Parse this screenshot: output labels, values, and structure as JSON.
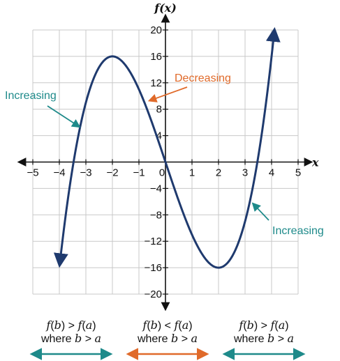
{
  "chart_data": {
    "type": "line",
    "xlabel": "x",
    "ylabel": "f(x)",
    "xlim": [
      -5,
      5
    ],
    "ylim": [
      -20,
      20
    ],
    "x_ticks": [
      -5,
      -4,
      -3,
      -2,
      -1,
      0,
      1,
      2,
      3,
      4,
      5
    ],
    "y_ticks": [
      -20,
      -16,
      -12,
      -8,
      -4,
      4,
      8,
      12,
      16,
      20
    ],
    "grid": true,
    "series": [
      {
        "function": "x^3 - 12x",
        "color": "#1f3a6e",
        "x": [
          -4,
          -3.5,
          -3,
          -2.5,
          -2,
          -1.5,
          -1,
          -0.5,
          0,
          0.5,
          1,
          1.5,
          2,
          2.5,
          3,
          3.5,
          4
        ],
        "y": [
          -16,
          1.125,
          9,
          14.375,
          16,
          14.625,
          11,
          5.875,
          0,
          -5.875,
          -11,
          -14.625,
          -16,
          -14.375,
          -9,
          -1.125,
          16
        ]
      }
    ],
    "annotations": [
      {
        "text": "Increasing",
        "color": "#1e8a8a",
        "points_to": [
          -3.25,
          5.35
        ]
      },
      {
        "text": "Decreasing",
        "color": "#e06a2a",
        "points_to": [
          -0.6,
          9.3
        ]
      },
      {
        "text": "Increasing",
        "color": "#1e8a8a",
        "points_to": [
          3.3,
          -6.3
        ]
      }
    ]
  },
  "legend": [
    {
      "condition": "f(b) > f(a)",
      "qualifier": "where b > a",
      "color": "#1e8a8a"
    },
    {
      "condition": "f(b) < f(a)",
      "qualifier": "where b > a",
      "color": "#e06a2a"
    },
    {
      "condition": "f(b) > f(a)",
      "qualifier": "where b > a",
      "color": "#1e8a8a"
    }
  ]
}
